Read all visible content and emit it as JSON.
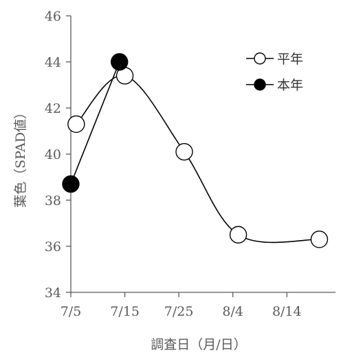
{
  "chart_data": {
    "type": "line",
    "xlabel": "調査日（月/日）",
    "ylabel": "葉色（SPAD値）",
    "ylim": [
      34,
      46
    ],
    "yticks": [
      34,
      36,
      38,
      40,
      42,
      44,
      46
    ],
    "xlim": [
      "7/5",
      "8/23"
    ],
    "xticks": [
      "7/5",
      "7/15",
      "7/25",
      "8/4",
      "8/14"
    ],
    "grid": false,
    "legend_position": "top-right",
    "series": [
      {
        "name": "平年",
        "marker": "open-circle",
        "smooth": true,
        "color": "#000000",
        "points": [
          {
            "x": "7/6",
            "y": 41.3
          },
          {
            "x": "7/15",
            "y": 43.4
          },
          {
            "x": "7/26",
            "y": 40.1
          },
          {
            "x": "8/5",
            "y": 36.5
          },
          {
            "x": "8/20",
            "y": 36.3
          }
        ]
      },
      {
        "name": "本年",
        "marker": "filled-circle",
        "smooth": false,
        "color": "#000000",
        "points": [
          {
            "x": "7/5",
            "y": 38.7
          },
          {
            "x": "7/14",
            "y": 44.0
          }
        ]
      }
    ]
  }
}
